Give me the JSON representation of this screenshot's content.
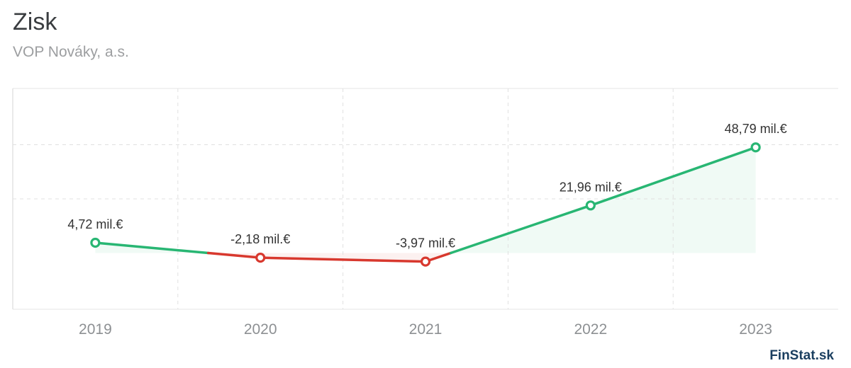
{
  "header": {
    "title": "Zisk",
    "subtitle": "VOP Nováky, a.s."
  },
  "watermark": "FinStat.sk",
  "chart_data": {
    "type": "line",
    "title": "Zisk",
    "subtitle": "VOP Nováky, a.s.",
    "categories": [
      "2019",
      "2020",
      "2021",
      "2022",
      "2023"
    ],
    "series": [
      {
        "name": "Zisk",
        "values": [
          4.72,
          -2.18,
          -3.97,
          21.96,
          48.79
        ]
      }
    ],
    "point_labels": [
      "4,72 mil.€",
      "-2,18 mil.€",
      "-3,97 mil.€",
      "21,96 mil.€",
      "48,79 mil.€"
    ],
    "unit": "mil.€",
    "xlabel": "",
    "ylabel": "",
    "ylim": [
      -26,
      76
    ],
    "ygrid_values": [
      50,
      25
    ],
    "grid": true,
    "legend": false,
    "colors": {
      "positive": "#28b673",
      "negative": "#d8382e",
      "positive_fill": "rgba(40,182,115,0.07)",
      "negative_fill": "rgba(216,56,46,0.07)",
      "grid": "#e0e0e0",
      "border": "#e6e6e6",
      "border_left": "#d4d4d4",
      "axis_text": "#8d9093",
      "label_text": "#333333",
      "point_fill": "#ffffff"
    }
  }
}
